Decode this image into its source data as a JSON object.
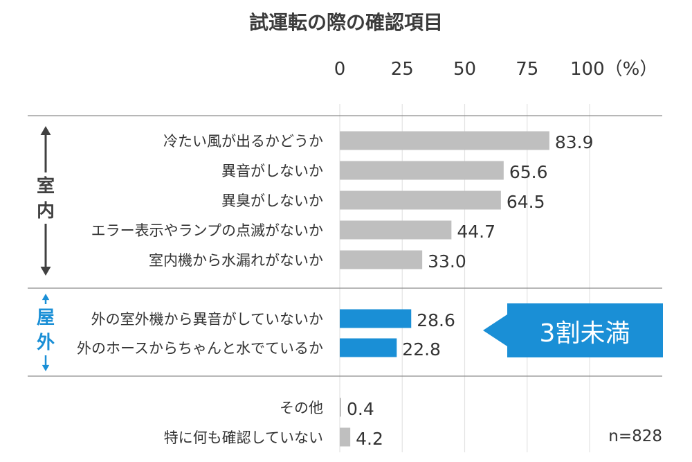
{
  "chart_data": {
    "type": "bar",
    "orientation": "horizontal",
    "title": "試運転の際の確認項目",
    "xlim": [
      0,
      100
    ],
    "x_ticks": [
      "0",
      "25",
      "50",
      "75",
      "100（%）"
    ],
    "grid": true,
    "sample_note": "n=828",
    "groups": [
      {
        "label": "室内",
        "color": "#404040",
        "bar_color": "#bfbfbf",
        "categories": [
          "冷たい風が出るかどうか",
          "異音がしないか",
          "異臭がしないか",
          "エラー表示やランプの点滅がないか",
          "室内機から水漏れがないか"
        ],
        "values": [
          83.9,
          65.6,
          64.5,
          44.7,
          33.0
        ],
        "value_labels": [
          "83.9",
          "65.6",
          "64.5",
          "44.7",
          "33.0"
        ]
      },
      {
        "label": "屋外",
        "color": "#1a8fd6",
        "bar_color": "#1a8fd6",
        "categories": [
          "外の室外機から異音がしていないか",
          "外のホースからちゃんと水でているか"
        ],
        "values": [
          28.6,
          22.8
        ],
        "value_labels": [
          "28.6",
          "22.8"
        ]
      },
      {
        "label": "",
        "color": "#404040",
        "bar_color": "#bfbfbf",
        "categories": [
          "その他",
          "特に何も確認していない"
        ],
        "values": [
          0.4,
          4.2
        ],
        "value_labels": [
          "0.4",
          "4.2"
        ]
      }
    ],
    "annotation": {
      "text": "3割未満",
      "color": "#1a8fd6"
    }
  }
}
